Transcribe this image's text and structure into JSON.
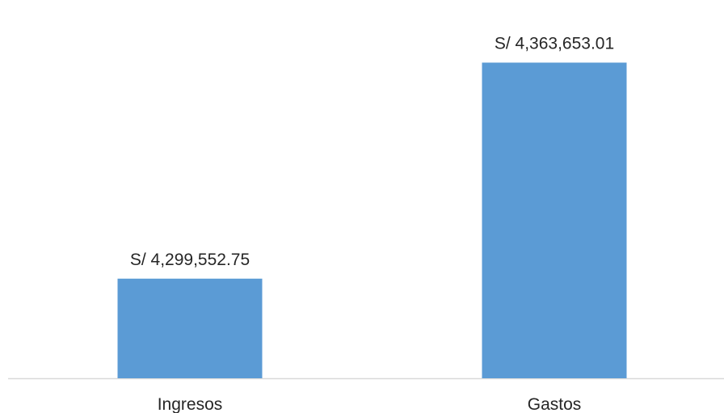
{
  "chart_data": {
    "type": "bar",
    "title": "",
    "xlabel": "",
    "ylabel": "",
    "categories": [
      "Ingresos",
      "Gastos"
    ],
    "values": [
      4299552.75,
      4363653.01
    ],
    "data_labels": [
      "S/ 4,299,552.75",
      "S/ 4,363,653.01"
    ],
    "ylim": [
      4270000,
      4370000
    ],
    "bar_color": "#5b9bd5",
    "axis_color": "#d9d9d9",
    "grid": false,
    "legend": "none"
  }
}
